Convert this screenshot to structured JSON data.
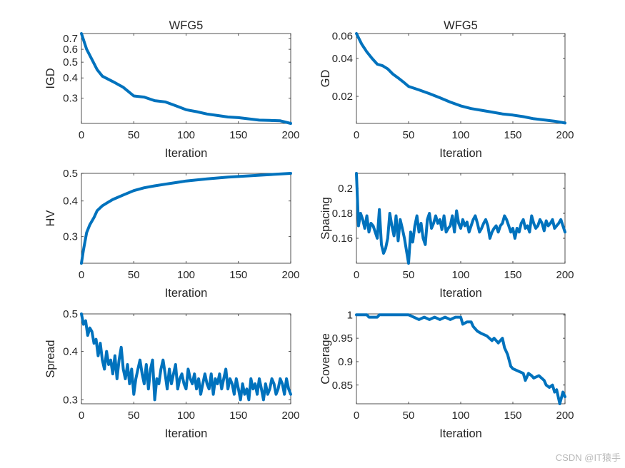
{
  "figure": {
    "line_color": "#0072bd",
    "watermark": "CSDN @IT猿手"
  },
  "chart_data": [
    {
      "type": "line",
      "title": "WFG5",
      "xlabel": "Iteration",
      "ylabel": "IGD",
      "xlim": [
        0,
        200
      ],
      "ylim": [
        0.21,
        0.75
      ],
      "yscale": "log",
      "xticks": [
        0,
        50,
        100,
        150,
        200
      ],
      "yticks": [
        0.3,
        0.4,
        0.5,
        0.6,
        0.7
      ],
      "grid": false,
      "series": [
        {
          "x": [
            0,
            5,
            10,
            15,
            20,
            30,
            40,
            50,
            60,
            70,
            80,
            90,
            100,
            110,
            120,
            130,
            140,
            150,
            160,
            170,
            180,
            190,
            200
          ],
          "values": [
            0.75,
            0.6,
            0.52,
            0.45,
            0.41,
            0.38,
            0.35,
            0.31,
            0.305,
            0.29,
            0.285,
            0.27,
            0.255,
            0.248,
            0.24,
            0.235,
            0.23,
            0.228,
            0.224,
            0.22,
            0.219,
            0.218,
            0.21
          ]
        }
      ]
    },
    {
      "type": "line",
      "title": "WFG5",
      "xlabel": "Iteration",
      "ylabel": "GD",
      "xlim": [
        0,
        200
      ],
      "ylim": [
        0.0122,
        0.063
      ],
      "yscale": "log",
      "xticks": [
        0,
        50,
        100,
        150,
        200
      ],
      "yticks": [
        0.02,
        0.04,
        0.06
      ],
      "grid": false,
      "series": [
        {
          "x": [
            0,
            5,
            10,
            15,
            20,
            25,
            30,
            35,
            40,
            45,
            50,
            60,
            70,
            80,
            90,
            100,
            110,
            120,
            130,
            140,
            150,
            160,
            170,
            180,
            190,
            200
          ],
          "values": [
            0.063,
            0.052,
            0.045,
            0.04,
            0.036,
            0.035,
            0.033,
            0.03,
            0.028,
            0.026,
            0.024,
            0.0225,
            0.021,
            0.0195,
            0.018,
            0.0168,
            0.016,
            0.0155,
            0.015,
            0.0145,
            0.0142,
            0.0138,
            0.0133,
            0.013,
            0.0127,
            0.0123
          ]
        }
      ]
    },
    {
      "type": "line",
      "xlabel": "Iteration",
      "ylabel": "HV",
      "xlim": [
        0,
        200
      ],
      "ylim": [
        0.242,
        0.5
      ],
      "yscale": "log",
      "xticks": [
        0,
        50,
        100,
        150,
        200
      ],
      "yticks": [
        0.3,
        0.4,
        0.5
      ],
      "grid": false,
      "series": [
        {
          "x": [
            0,
            2,
            5,
            8,
            12,
            15,
            20,
            25,
            30,
            40,
            50,
            60,
            70,
            80,
            90,
            100,
            120,
            140,
            160,
            180,
            200
          ],
          "values": [
            0.242,
            0.27,
            0.31,
            0.33,
            0.35,
            0.37,
            0.385,
            0.395,
            0.405,
            0.42,
            0.435,
            0.445,
            0.452,
            0.458,
            0.464,
            0.47,
            0.478,
            0.485,
            0.49,
            0.495,
            0.5
          ]
        }
      ]
    },
    {
      "type": "line",
      "xlabel": "Iteration",
      "ylabel": "Spacing",
      "xlim": [
        0,
        200
      ],
      "ylim": [
        0.14,
        0.212
      ],
      "xticks": [
        0,
        50,
        100,
        150,
        200
      ],
      "yticks": [
        0.16,
        0.18,
        0.2
      ],
      "grid": false,
      "series": [
        {
          "x": [
            0,
            2,
            4,
            6,
            8,
            10,
            12,
            14,
            16,
            18,
            20,
            22,
            24,
            26,
            28,
            30,
            32,
            34,
            36,
            38,
            40,
            42,
            44,
            46,
            48,
            50,
            52,
            54,
            56,
            58,
            60,
            62,
            64,
            66,
            68,
            70,
            72,
            74,
            76,
            78,
            80,
            82,
            84,
            86,
            88,
            90,
            92,
            94,
            96,
            98,
            100,
            102,
            104,
            106,
            108,
            110,
            112,
            114,
            116,
            118,
            120,
            122,
            124,
            126,
            128,
            130,
            132,
            134,
            136,
            138,
            140,
            142,
            144,
            146,
            148,
            150,
            152,
            154,
            156,
            158,
            160,
            162,
            164,
            166,
            168,
            170,
            172,
            174,
            176,
            178,
            180,
            182,
            184,
            186,
            188,
            190,
            192,
            194,
            196,
            198,
            200
          ],
          "values": [
            0.212,
            0.17,
            0.18,
            0.175,
            0.168,
            0.178,
            0.165,
            0.172,
            0.17,
            0.165,
            0.16,
            0.183,
            0.155,
            0.148,
            0.152,
            0.16,
            0.18,
            0.17,
            0.162,
            0.178,
            0.158,
            0.175,
            0.168,
            0.16,
            0.15,
            0.14,
            0.165,
            0.157,
            0.17,
            0.178,
            0.165,
            0.172,
            0.16,
            0.155,
            0.175,
            0.18,
            0.168,
            0.172,
            0.178,
            0.172,
            0.175,
            0.167,
            0.178,
            0.165,
            0.168,
            0.17,
            0.178,
            0.165,
            0.182,
            0.172,
            0.168,
            0.175,
            0.17,
            0.173,
            0.165,
            0.17,
            0.175,
            0.178,
            0.172,
            0.165,
            0.168,
            0.172,
            0.175,
            0.17,
            0.16,
            0.165,
            0.168,
            0.17,
            0.165,
            0.17,
            0.172,
            0.178,
            0.175,
            0.17,
            0.165,
            0.168,
            0.16,
            0.168,
            0.165,
            0.172,
            0.175,
            0.168,
            0.17,
            0.165,
            0.178,
            0.172,
            0.168,
            0.17,
            0.175,
            0.172,
            0.166,
            0.174,
            0.17,
            0.172,
            0.175,
            0.168,
            0.17,
            0.172,
            0.175,
            0.17,
            0.165
          ]
        }
      ]
    },
    {
      "type": "line",
      "xlabel": "Iteration",
      "ylabel": "Spread",
      "xlim": [
        0,
        200
      ],
      "ylim": [
        0.293,
        0.5
      ],
      "yscale": "log",
      "xticks": [
        0,
        50,
        100,
        150,
        200
      ],
      "yticks": [
        0.3,
        0.4,
        0.5
      ],
      "grid": false,
      "series": [
        {
          "x": [
            0,
            2,
            4,
            6,
            8,
            10,
            12,
            14,
            16,
            18,
            20,
            22,
            24,
            26,
            28,
            30,
            32,
            34,
            36,
            38,
            40,
            42,
            44,
            46,
            48,
            50,
            52,
            54,
            56,
            58,
            60,
            62,
            64,
            66,
            68,
            70,
            72,
            74,
            76,
            78,
            80,
            82,
            84,
            86,
            88,
            90,
            92,
            94,
            96,
            98,
            100,
            102,
            104,
            106,
            108,
            110,
            112,
            114,
            116,
            118,
            120,
            122,
            124,
            126,
            128,
            130,
            132,
            134,
            136,
            138,
            140,
            142,
            144,
            146,
            148,
            150,
            152,
            154,
            156,
            158,
            160,
            162,
            164,
            166,
            168,
            170,
            172,
            174,
            176,
            178,
            180,
            182,
            184,
            186,
            188,
            190,
            192,
            194,
            196,
            198,
            200
          ],
          "values": [
            0.5,
            0.47,
            0.48,
            0.44,
            0.46,
            0.45,
            0.42,
            0.43,
            0.39,
            0.42,
            0.38,
            0.36,
            0.4,
            0.37,
            0.38,
            0.35,
            0.39,
            0.34,
            0.38,
            0.41,
            0.36,
            0.34,
            0.37,
            0.33,
            0.36,
            0.31,
            0.34,
            0.36,
            0.38,
            0.35,
            0.33,
            0.37,
            0.32,
            0.36,
            0.38,
            0.3,
            0.34,
            0.33,
            0.36,
            0.38,
            0.35,
            0.32,
            0.36,
            0.33,
            0.35,
            0.37,
            0.32,
            0.34,
            0.35,
            0.33,
            0.32,
            0.36,
            0.34,
            0.33,
            0.35,
            0.32,
            0.34,
            0.31,
            0.33,
            0.35,
            0.33,
            0.32,
            0.35,
            0.31,
            0.34,
            0.33,
            0.35,
            0.32,
            0.34,
            0.36,
            0.32,
            0.34,
            0.33,
            0.31,
            0.34,
            0.32,
            0.3,
            0.33,
            0.31,
            0.32,
            0.3,
            0.34,
            0.32,
            0.33,
            0.31,
            0.34,
            0.32,
            0.3,
            0.33,
            0.31,
            0.32,
            0.34,
            0.33,
            0.31,
            0.32,
            0.34,
            0.33,
            0.31,
            0.34,
            0.32,
            0.31
          ]
        }
      ]
    },
    {
      "type": "line",
      "xlabel": "Iteration",
      "ylabel": "Coverage",
      "xlim": [
        0,
        200
      ],
      "ylim": [
        0.81,
        1.002
      ],
      "xticks": [
        0,
        50,
        100,
        150,
        200
      ],
      "yticks": [
        0.85,
        0.9,
        0.95,
        1
      ],
      "grid": false,
      "series": [
        {
          "x": [
            0,
            10,
            12,
            20,
            22,
            50,
            55,
            60,
            65,
            70,
            75,
            80,
            85,
            90,
            95,
            100,
            102,
            106,
            110,
            112,
            116,
            120,
            125,
            130,
            132,
            136,
            140,
            142,
            145,
            148,
            150,
            155,
            160,
            162,
            165,
            168,
            170,
            175,
            180,
            182,
            185,
            188,
            190,
            192,
            195,
            198,
            200
          ],
          "values": [
            1,
            1,
            0.995,
            0.995,
            1,
            1,
            0.995,
            0.99,
            0.995,
            0.99,
            0.995,
            0.99,
            0.995,
            0.99,
            0.995,
            0.995,
            0.98,
            0.985,
            0.985,
            0.975,
            0.965,
            0.96,
            0.955,
            0.945,
            0.95,
            0.94,
            0.95,
            0.93,
            0.915,
            0.89,
            0.885,
            0.88,
            0.875,
            0.86,
            0.875,
            0.87,
            0.865,
            0.87,
            0.86,
            0.85,
            0.845,
            0.85,
            0.835,
            0.84,
            0.81,
            0.835,
            0.825
          ]
        }
      ]
    }
  ]
}
